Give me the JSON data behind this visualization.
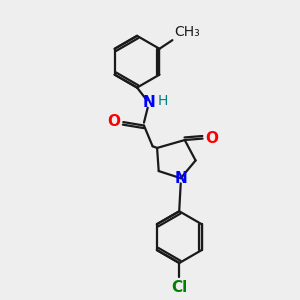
{
  "bg_color": "#eeeeee",
  "bond_color": "#1a1a1a",
  "N_color": "#0000ff",
  "O_color": "#ff0000",
  "Cl_color": "#008000",
  "H_color": "#008080",
  "line_width": 1.6,
  "font_size": 11,
  "small_font_size": 10,
  "xlim": [
    0,
    10
  ],
  "ylim": [
    0,
    10
  ]
}
